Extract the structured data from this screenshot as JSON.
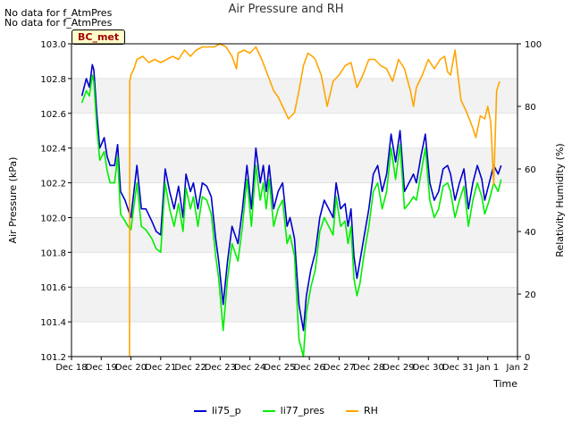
{
  "notes": [
    "No data for f_AtmPres",
    "No data for f_AtmPres"
  ],
  "badge": "BC_met",
  "chart_data": {
    "type": "line",
    "title": "Air Pressure and RH",
    "xlabel": "Time",
    "ylabel": "Air Pressure (kPa)",
    "y2label": "Relativity Humidity (%)",
    "x_ticks": [
      "Dec 18",
      "Dec 19",
      "Dec 20",
      "Dec 21",
      "Dec 22",
      "Dec 23",
      "Dec 24",
      "Dec 25",
      "Dec 26",
      "Dec 27",
      "Dec 28",
      "Dec 29",
      "Dec 30",
      "Dec 31",
      "Jan 1",
      "Jan 2"
    ],
    "xlim": [
      0,
      15
    ],
    "ylim": [
      101.2,
      103.0
    ],
    "y_ticks": [
      101.2,
      101.4,
      101.6,
      101.8,
      102.0,
      102.2,
      102.4,
      102.6,
      102.8,
      103.0
    ],
    "y2lim": [
      0,
      100
    ],
    "y2_ticks": [
      0,
      20,
      40,
      60,
      80,
      100
    ],
    "grid": true,
    "legend_position": "bottom",
    "series": [
      {
        "name": "li75_p",
        "axis": "left",
        "color": "#0000cc",
        "x": [
          0.35,
          0.5,
          0.6,
          0.7,
          0.75,
          0.85,
          0.95,
          1.1,
          1.2,
          1.3,
          1.45,
          1.55,
          1.65,
          1.8,
          1.9,
          2.0,
          2.2,
          2.35,
          2.5,
          2.7,
          2.85,
          3.0,
          3.15,
          3.3,
          3.45,
          3.6,
          3.75,
          3.85,
          4.0,
          4.1,
          4.25,
          4.4,
          4.55,
          4.7,
          4.85,
          4.95,
          5.1,
          5.25,
          5.4,
          5.6,
          5.75,
          5.9,
          6.05,
          6.2,
          6.35,
          6.45,
          6.55,
          6.65,
          6.8,
          6.95,
          7.1,
          7.25,
          7.35,
          7.5,
          7.65,
          7.8,
          7.9,
          8.05,
          8.2,
          8.35,
          8.5,
          8.65,
          8.8,
          8.9,
          9.05,
          9.2,
          9.3,
          9.4,
          9.5,
          9.6,
          9.7,
          9.85,
          10.0,
          10.15,
          10.3,
          10.45,
          10.6,
          10.75,
          10.9,
          11.05,
          11.2,
          11.35,
          11.5,
          11.6,
          11.75,
          11.9,
          12.05,
          12.2,
          12.35,
          12.5,
          12.65,
          12.75,
          12.9,
          13.05,
          13.2,
          13.35,
          13.5,
          13.65,
          13.8,
          13.9,
          14.05,
          14.2,
          14.35,
          14.45
        ],
        "y": [
          102.7,
          102.8,
          102.75,
          102.88,
          102.85,
          102.6,
          102.4,
          102.46,
          102.35,
          102.3,
          102.3,
          102.42,
          102.15,
          102.1,
          102.05,
          102.0,
          102.3,
          102.05,
          102.05,
          101.98,
          101.92,
          101.9,
          102.28,
          102.15,
          102.05,
          102.18,
          102.0,
          102.25,
          102.15,
          102.2,
          102.05,
          102.2,
          102.18,
          102.12,
          101.88,
          101.75,
          101.5,
          101.75,
          101.95,
          101.85,
          102.05,
          102.3,
          102.05,
          102.4,
          102.2,
          102.3,
          102.15,
          102.3,
          102.05,
          102.15,
          102.2,
          101.95,
          102.0,
          101.88,
          101.5,
          101.35,
          101.55,
          101.7,
          101.8,
          102.0,
          102.1,
          102.05,
          102.0,
          102.2,
          102.05,
          102.08,
          101.95,
          102.05,
          101.78,
          101.65,
          101.75,
          101.9,
          102.05,
          102.25,
          102.3,
          102.15,
          102.25,
          102.48,
          102.32,
          102.5,
          102.15,
          102.2,
          102.25,
          102.2,
          102.35,
          102.48,
          102.2,
          102.1,
          102.15,
          102.28,
          102.3,
          102.25,
          102.1,
          102.2,
          102.28,
          102.05,
          102.2,
          102.3,
          102.22,
          102.1,
          102.2,
          102.3,
          102.25,
          102.3
        ]
      },
      {
        "name": "li77_pres",
        "axis": "left",
        "color": "#00ee00",
        "x": [
          0.35,
          0.5,
          0.6,
          0.7,
          0.75,
          0.85,
          0.95,
          1.1,
          1.2,
          1.3,
          1.45,
          1.55,
          1.65,
          1.8,
          1.9,
          2.0,
          2.2,
          2.35,
          2.5,
          2.7,
          2.85,
          3.0,
          3.15,
          3.3,
          3.45,
          3.6,
          3.75,
          3.85,
          4.0,
          4.1,
          4.25,
          4.4,
          4.55,
          4.7,
          4.85,
          4.95,
          5.1,
          5.25,
          5.4,
          5.6,
          5.75,
          5.9,
          6.05,
          6.2,
          6.35,
          6.45,
          6.55,
          6.65,
          6.8,
          6.95,
          7.1,
          7.25,
          7.35,
          7.5,
          7.65,
          7.8,
          7.9,
          8.05,
          8.2,
          8.35,
          8.5,
          8.65,
          8.8,
          8.9,
          9.05,
          9.2,
          9.3,
          9.4,
          9.5,
          9.6,
          9.7,
          9.85,
          10.0,
          10.15,
          10.3,
          10.45,
          10.6,
          10.75,
          10.9,
          11.05,
          11.2,
          11.35,
          11.5,
          11.6,
          11.75,
          11.9,
          12.05,
          12.2,
          12.35,
          12.5,
          12.65,
          12.75,
          12.9,
          13.05,
          13.2,
          13.35,
          13.5,
          13.65,
          13.8,
          13.9,
          14.05,
          14.2,
          14.35,
          14.45
        ],
        "y": [
          102.66,
          102.73,
          102.7,
          102.82,
          102.78,
          102.52,
          102.33,
          102.38,
          102.27,
          102.2,
          102.2,
          102.35,
          102.02,
          101.98,
          101.95,
          101.93,
          102.2,
          101.95,
          101.93,
          101.88,
          101.82,
          101.8,
          102.2,
          102.05,
          101.95,
          102.08,
          101.92,
          102.17,
          102.05,
          102.12,
          101.95,
          102.12,
          102.1,
          102.02,
          101.78,
          101.65,
          101.35,
          101.65,
          101.85,
          101.75,
          101.95,
          102.22,
          101.95,
          102.3,
          102.1,
          102.2,
          102.05,
          102.22,
          101.95,
          102.05,
          102.1,
          101.85,
          101.9,
          101.78,
          101.3,
          101.2,
          101.45,
          101.6,
          101.7,
          101.92,
          102.0,
          101.95,
          101.9,
          102.12,
          101.95,
          101.98,
          101.85,
          101.95,
          101.65,
          101.55,
          101.62,
          101.8,
          101.95,
          102.15,
          102.2,
          102.05,
          102.15,
          102.4,
          102.22,
          102.42,
          102.05,
          102.08,
          102.12,
          102.1,
          102.25,
          102.4,
          102.1,
          102.0,
          102.05,
          102.18,
          102.2,
          102.15,
          102.0,
          102.1,
          102.18,
          101.95,
          102.1,
          102.2,
          102.12,
          102.02,
          102.1,
          102.2,
          102.15,
          102.22
        ]
      },
      {
        "name": "RH",
        "axis": "right",
        "color": "#ffa500",
        "x": [
          1.95,
          1.96,
          2.0,
          2.1,
          2.2,
          2.4,
          2.6,
          2.8,
          3.0,
          3.2,
          3.4,
          3.6,
          3.8,
          4.0,
          4.2,
          4.4,
          4.6,
          4.8,
          5.0,
          5.2,
          5.4,
          5.55,
          5.6,
          5.8,
          6.0,
          6.2,
          6.4,
          6.6,
          6.8,
          6.95,
          7.1,
          7.3,
          7.5,
          7.65,
          7.8,
          7.95,
          8.1,
          8.2,
          8.4,
          8.6,
          8.8,
          9.0,
          9.2,
          9.4,
          9.6,
          9.8,
          10.0,
          10.2,
          10.4,
          10.6,
          10.8,
          11.0,
          11.2,
          11.4,
          11.5,
          11.6,
          11.8,
          12.0,
          12.2,
          12.4,
          12.55,
          12.65,
          12.75,
          12.9,
          13.1,
          13.3,
          13.5,
          13.6,
          13.75,
          13.9,
          14.0,
          14.1,
          14.2,
          14.3,
          14.4
        ],
        "y": [
          0,
          88,
          90,
          92,
          95,
          96,
          94,
          95,
          94,
          95,
          96,
          95,
          98,
          96,
          98,
          99,
          99,
          99,
          100,
          99,
          96,
          92,
          97,
          98,
          97,
          99,
          95,
          90,
          85,
          83,
          80,
          76,
          78,
          85,
          93,
          97,
          96,
          95,
          90,
          80,
          88,
          90,
          93,
          94,
          86,
          90,
          95,
          95,
          93,
          92,
          88,
          95,
          92,
          85,
          80,
          86,
          90,
          95,
          92,
          95,
          96,
          91,
          90,
          98,
          82,
          78,
          73,
          70,
          77,
          76,
          80,
          75,
          55,
          85,
          88
        ]
      }
    ]
  },
  "colors": {
    "band": "#f2f2f2",
    "grid": "#dddddd"
  }
}
